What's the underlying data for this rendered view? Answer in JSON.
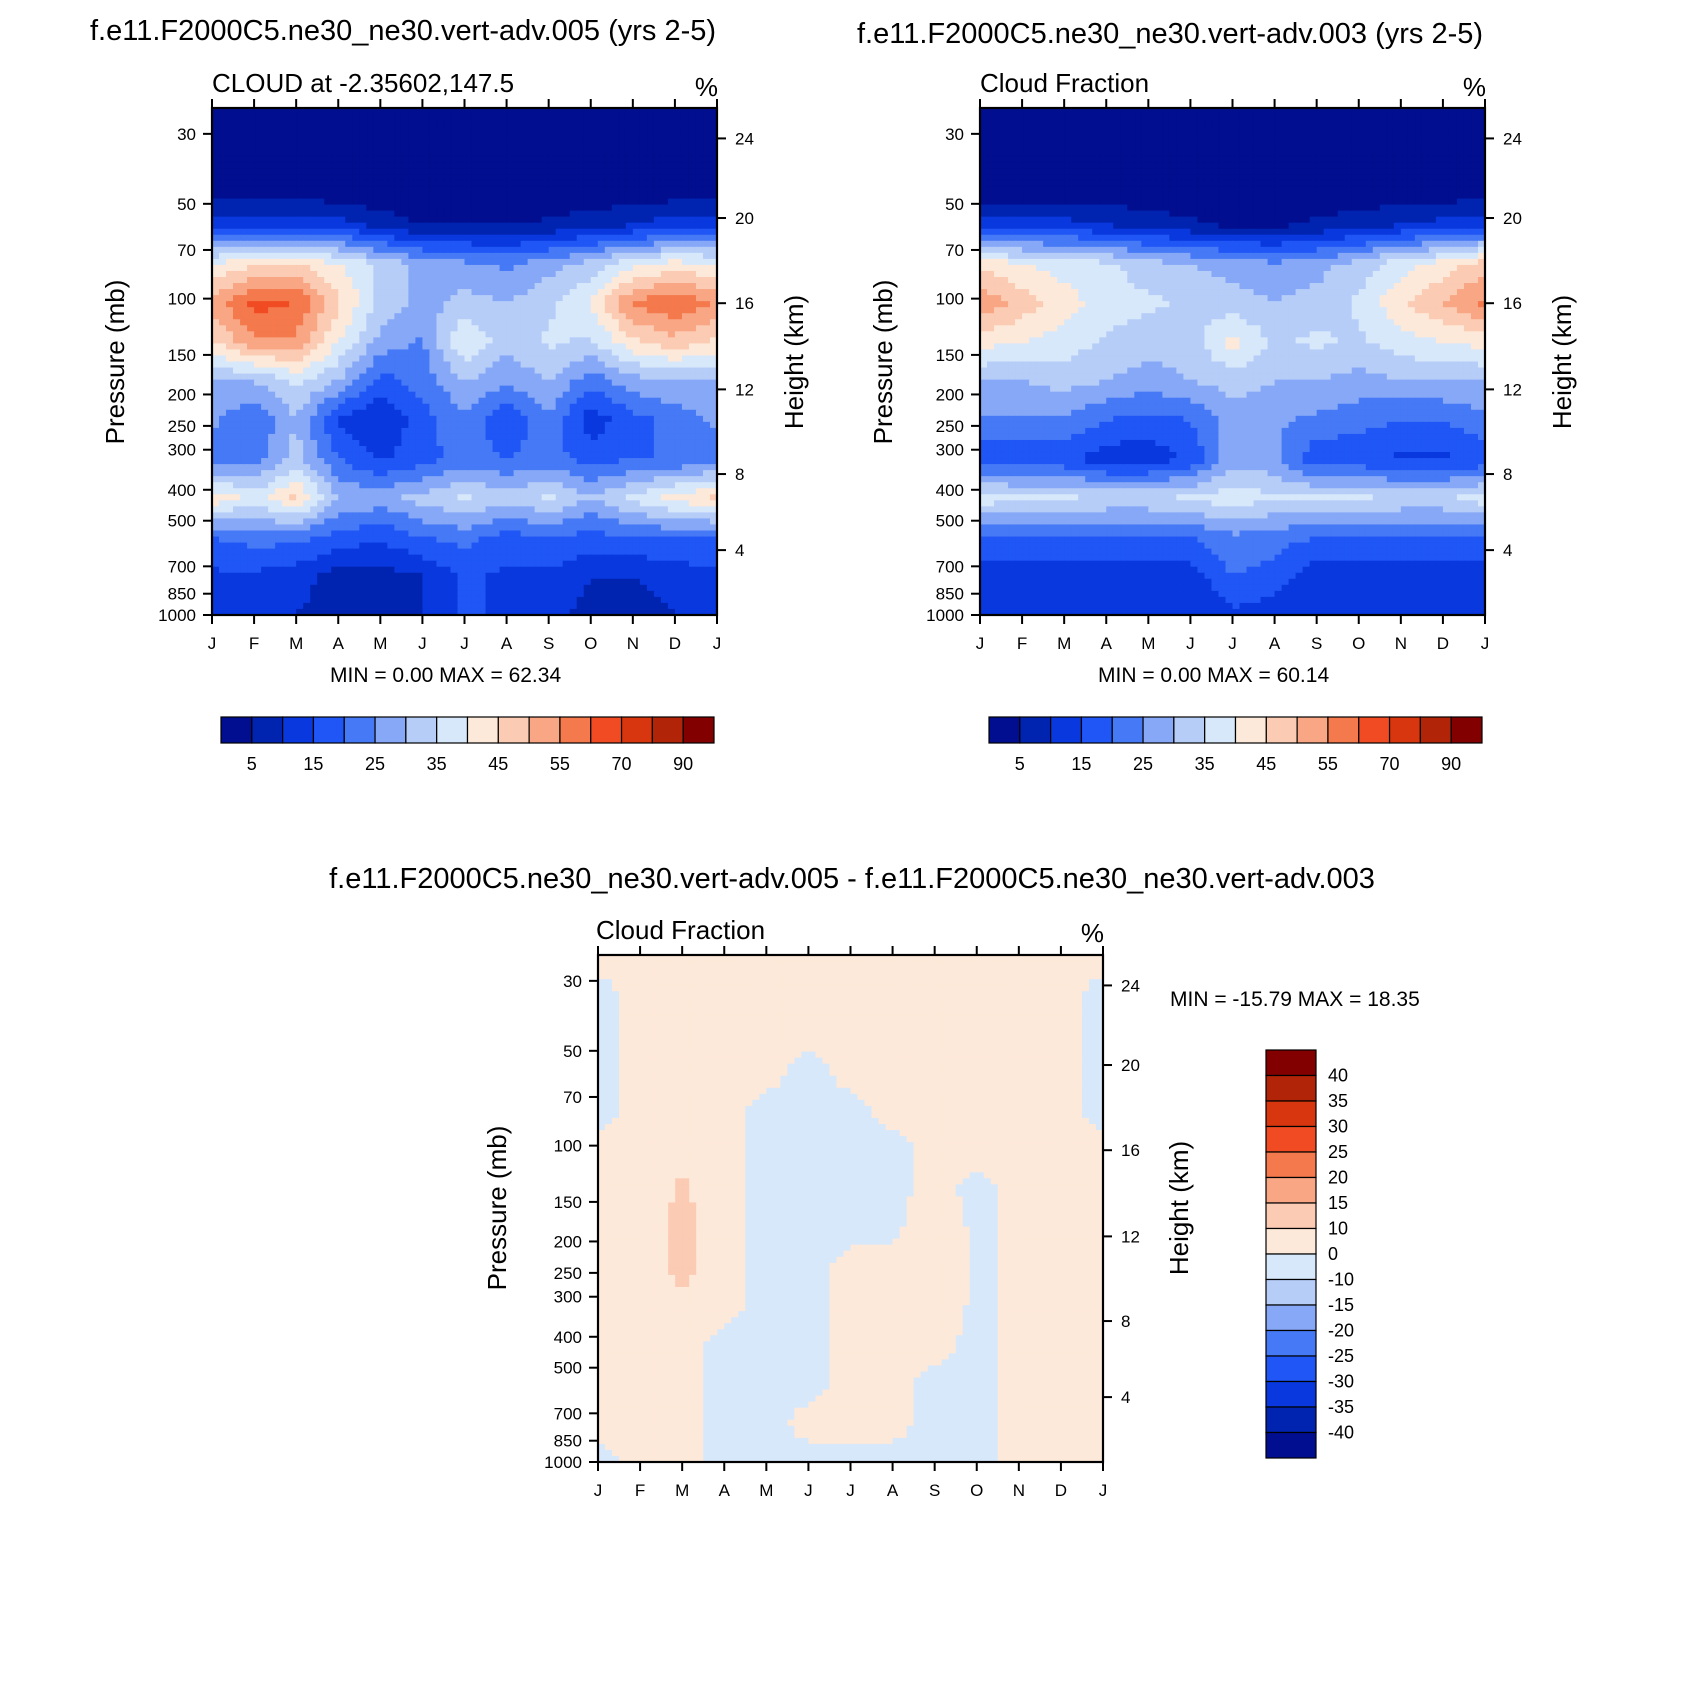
{
  "colors": {
    "levels_main": [
      "#000e8f",
      "#0024b0",
      "#0838de",
      "#1f56f5",
      "#4679f5",
      "#86a8f7",
      "#b6cdf8",
      "#d8e8fb",
      "#fde9d9",
      "#fbcbb4",
      "#f8a684",
      "#f4794c",
      "#f04b22",
      "#d8360e",
      "#b22408",
      "#820000"
    ],
    "levels_diff": [
      "#000e8f",
      "#0024b0",
      "#0838de",
      "#1f56f5",
      "#4679f5",
      "#86a8f7",
      "#b6cdf8",
      "#d8e8fb",
      "#fde9d9",
      "#fbcbb4",
      "#f8a684",
      "#f4794c",
      "#f04b22",
      "#d8360e",
      "#b22408",
      "#820000"
    ]
  },
  "chart_data": [
    {
      "type": "heatmap",
      "title": "f.e11.F2000C5.ne30_ne30.vert-adv.005 (yrs 2-5)",
      "left_title": "CLOUD at -2.35602,147.5",
      "right_title": "%",
      "ylabel": "Pressure (mb)",
      "y2label": "Height (km)",
      "x_ticklabels": [
        "J",
        "F",
        "M",
        "A",
        "M",
        "J",
        "J",
        "A",
        "S",
        "O",
        "N",
        "D",
        "J"
      ],
      "y_ticks": [
        "30",
        "50",
        "70",
        "100",
        "150",
        "200",
        "250",
        "300",
        "400",
        "500",
        "700",
        "850",
        "1000"
      ],
      "y2_ticks": [
        "24",
        "20",
        "16",
        "12",
        "8",
        "4"
      ],
      "stats": "MIN =   0.00 MAX =  62.34",
      "colorbar_labels": [
        "5",
        "15",
        "25",
        "35",
        "45",
        "55",
        "70",
        "90"
      ],
      "field": [
        [
          0,
          0,
          0,
          0,
          0,
          0,
          0,
          0,
          0,
          0,
          0,
          0,
          0
        ],
        [
          0,
          0,
          0,
          0,
          0,
          0,
          0,
          0,
          0,
          0,
          0,
          0,
          0
        ],
        [
          0,
          0,
          0,
          0,
          0,
          0,
          0,
          0,
          0,
          0,
          0,
          0,
          0
        ],
        [
          14,
          14,
          14,
          12,
          8,
          5,
          5,
          5,
          6,
          8,
          10,
          13,
          14
        ],
        [
          40,
          44,
          46,
          40,
          34,
          28,
          26,
          24,
          28,
          32,
          38,
          42,
          40
        ],
        [
          52,
          62,
          60,
          46,
          34,
          28,
          32,
          30,
          34,
          40,
          56,
          60,
          54
        ],
        [
          44,
          54,
          54,
          40,
          28,
          24,
          40,
          32,
          36,
          34,
          44,
          48,
          44
        ],
        [
          30,
          30,
          36,
          30,
          18,
          22,
          30,
          26,
          30,
          22,
          28,
          30,
          30
        ],
        [
          26,
          20,
          30,
          14,
          10,
          18,
          24,
          16,
          24,
          12,
          18,
          22,
          26
        ],
        [
          22,
          22,
          32,
          20,
          14,
          18,
          22,
          20,
          22,
          18,
          20,
          20,
          22
        ],
        [
          44,
          38,
          46,
          30,
          28,
          32,
          36,
          32,
          36,
          30,
          36,
          42,
          46
        ],
        [
          20,
          22,
          22,
          18,
          16,
          20,
          22,
          18,
          20,
          18,
          20,
          20,
          20
        ],
        [
          14,
          14,
          12,
          8,
          8,
          10,
          16,
          14,
          14,
          10,
          10,
          12,
          14
        ],
        [
          10,
          10,
          10,
          8,
          8,
          10,
          16,
          14,
          12,
          8,
          8,
          10,
          10
        ]
      ]
    },
    {
      "type": "heatmap",
      "title": "f.e11.F2000C5.ne30_ne30.vert-adv.003 (yrs 2-5)",
      "left_title": "Cloud Fraction",
      "right_title": "%",
      "ylabel": "Pressure (mb)",
      "y2label": "Height (km)",
      "x_ticklabels": [
        "J",
        "F",
        "M",
        "A",
        "M",
        "J",
        "J",
        "A",
        "S",
        "O",
        "N",
        "D",
        "J"
      ],
      "y_ticks": [
        "30",
        "50",
        "70",
        "100",
        "150",
        "200",
        "250",
        "300",
        "400",
        "500",
        "700",
        "850",
        "1000"
      ],
      "y2_ticks": [
        "24",
        "20",
        "16",
        "12",
        "8",
        "4"
      ],
      "stats": "MIN =   0.00 MAX =  60.14",
      "colorbar_labels": [
        "5",
        "15",
        "25",
        "35",
        "45",
        "55",
        "70",
        "90"
      ],
      "field": [
        [
          0,
          0,
          0,
          0,
          0,
          0,
          0,
          0,
          0,
          0,
          0,
          0,
          0
        ],
        [
          0,
          0,
          0,
          0,
          0,
          0,
          0,
          0,
          0,
          0,
          0,
          0,
          0
        ],
        [
          0,
          0,
          0,
          0,
          0,
          0,
          0,
          0,
          0,
          0,
          0,
          0,
          0
        ],
        [
          12,
          12,
          12,
          10,
          8,
          6,
          4,
          4,
          6,
          8,
          10,
          12,
          14
        ],
        [
          44,
          40,
          38,
          36,
          32,
          30,
          28,
          26,
          28,
          32,
          38,
          42,
          48
        ],
        [
          54,
          48,
          42,
          38,
          36,
          34,
          32,
          30,
          32,
          36,
          44,
          50,
          56
        ],
        [
          42,
          40,
          38,
          34,
          32,
          32,
          42,
          34,
          36,
          34,
          38,
          40,
          42
        ],
        [
          30,
          30,
          32,
          30,
          28,
          30,
          32,
          30,
          30,
          28,
          30,
          30,
          30
        ],
        [
          24,
          24,
          24,
          20,
          18,
          20,
          28,
          26,
          24,
          22,
          20,
          20,
          24
        ],
        [
          16,
          16,
          16,
          12,
          12,
          16,
          28,
          26,
          16,
          16,
          14,
          14,
          16
        ],
        [
          38,
          36,
          36,
          34,
          34,
          36,
          38,
          36,
          36,
          36,
          34,
          34,
          38
        ],
        [
          20,
          20,
          20,
          20,
          20,
          20,
          24,
          22,
          20,
          20,
          20,
          20,
          20
        ],
        [
          12,
          12,
          12,
          12,
          12,
          12,
          20,
          18,
          12,
          12,
          12,
          12,
          12
        ],
        [
          10,
          10,
          10,
          10,
          10,
          10,
          14,
          12,
          10,
          10,
          10,
          10,
          10
        ]
      ]
    },
    {
      "type": "heatmap",
      "title": "f.e11.F2000C5.ne30_ne30.vert-adv.005 - f.e11.F2000C5.ne30_ne30.vert-adv.003",
      "left_title": "Cloud Fraction",
      "right_title": "%",
      "ylabel": "Pressure (mb)",
      "y2label": "Height (km)",
      "x_ticklabels": [
        "J",
        "F",
        "M",
        "A",
        "M",
        "J",
        "J",
        "A",
        "S",
        "O",
        "N",
        "D",
        "J"
      ],
      "y_ticks": [
        "30",
        "50",
        "70",
        "100",
        "150",
        "200",
        "250",
        "300",
        "400",
        "500",
        "700",
        "850",
        "1000"
      ],
      "y2_ticks": [
        "24",
        "20",
        "16",
        "12",
        "8",
        "4"
      ],
      "stats": "MIN = -15.79 MAX =  18.35",
      "colorbar_labels": [
        "40",
        "35",
        "30",
        "25",
        "20",
        "15",
        "10",
        "0",
        "-10",
        "-15",
        "-20",
        "-25",
        "-30",
        "-35",
        "-40"
      ],
      "field": [
        [
          2,
          2,
          2,
          2,
          2,
          2,
          2,
          2,
          2,
          2,
          2,
          2,
          2
        ],
        [
          -2,
          2,
          2,
          2,
          2,
          2,
          2,
          2,
          2,
          2,
          2,
          2,
          -2
        ],
        [
          -2,
          2,
          2,
          2,
          2,
          2,
          2,
          2,
          2,
          2,
          2,
          2,
          -2
        ],
        [
          -2,
          2,
          6,
          2,
          2,
          -2,
          2,
          2,
          2,
          2,
          2,
          2,
          -2
        ],
        [
          -2,
          2,
          6,
          2,
          -2,
          -2,
          -2,
          2,
          2,
          2,
          2,
          2,
          -2
        ],
        [
          2,
          2,
          8,
          2,
          -2,
          -4,
          -2,
          -2,
          2,
          2,
          2,
          2,
          2
        ],
        [
          2,
          2,
          12,
          2,
          -2,
          -2,
          -2,
          -2,
          2,
          -2,
          2,
          2,
          2
        ],
        [
          2,
          2,
          14,
          2,
          -2,
          -2,
          -2,
          -2,
          6,
          -2,
          2,
          2,
          2
        ],
        [
          2,
          2,
          14,
          2,
          -2,
          -2,
          2,
          2,
          8,
          -2,
          2,
          2,
          2
        ],
        [
          2,
          2,
          8,
          2,
          -2,
          -2,
          2,
          2,
          6,
          -2,
          2,
          2,
          2
        ],
        [
          2,
          2,
          2,
          -2,
          -2,
          -2,
          2,
          2,
          2,
          -2,
          2,
          2,
          2
        ],
        [
          2,
          2,
          2,
          -2,
          -2,
          -2,
          2,
          2,
          -2,
          -2,
          2,
          2,
          2
        ],
        [
          2,
          2,
          2,
          -2,
          -2,
          2,
          2,
          2,
          -2,
          -2,
          2,
          2,
          2
        ],
        [
          -2,
          2,
          2,
          -2,
          -2,
          -2,
          -2,
          -2,
          -2,
          -2,
          2,
          2,
          2
        ]
      ]
    }
  ]
}
